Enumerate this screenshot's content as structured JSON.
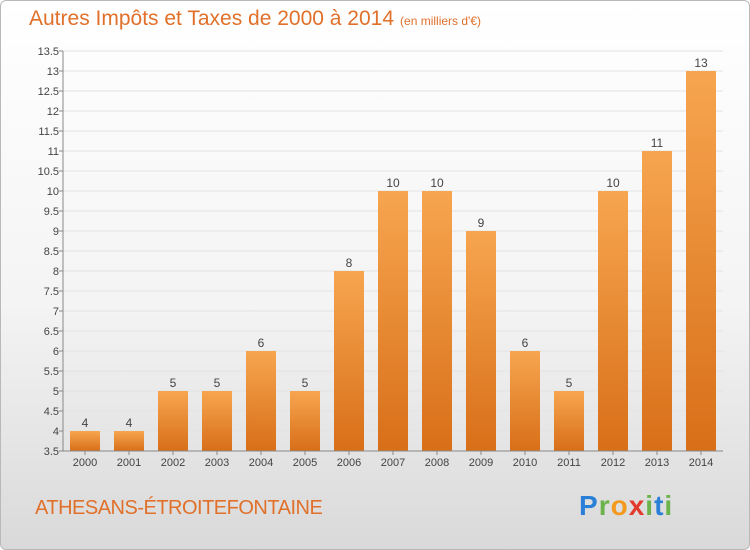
{
  "title": "Autres Impôts et Taxes de 2000 à 2014",
  "subtitle": "(en milliers d'€)",
  "commune": "ATHESANS-ÉTROITEFONTAINE",
  "logo": {
    "p": "P",
    "r": "r",
    "o": "o",
    "x": "x",
    "i": "i",
    "t": "t",
    "i2": "i"
  },
  "colors": {
    "bar": "#f5a04a",
    "bar_dark": "#d9731c",
    "text": "#e0702a"
  },
  "chart_data": {
    "type": "bar",
    "title": "Autres Impôts et Taxes de 2000 à 2014",
    "categories": [
      "2000",
      "2001",
      "2002",
      "2003",
      "2004",
      "2005",
      "2006",
      "2007",
      "2008",
      "2009",
      "2010",
      "2011",
      "2012",
      "2013",
      "2014"
    ],
    "values": [
      4,
      4,
      5,
      5,
      6,
      5,
      8,
      10,
      10,
      9,
      6,
      5,
      10,
      11,
      13
    ],
    "ylim": [
      3.5,
      13.5
    ],
    "yticks": [
      "3.5",
      "4",
      "4.5",
      "5",
      "5.5",
      "6",
      "6.5",
      "7",
      "7.5",
      "8",
      "8.5",
      "9",
      "9.5",
      "10",
      "10.5",
      "11",
      "11.5",
      "12",
      "12.5",
      "13",
      "13.5"
    ],
    "grid": true
  }
}
